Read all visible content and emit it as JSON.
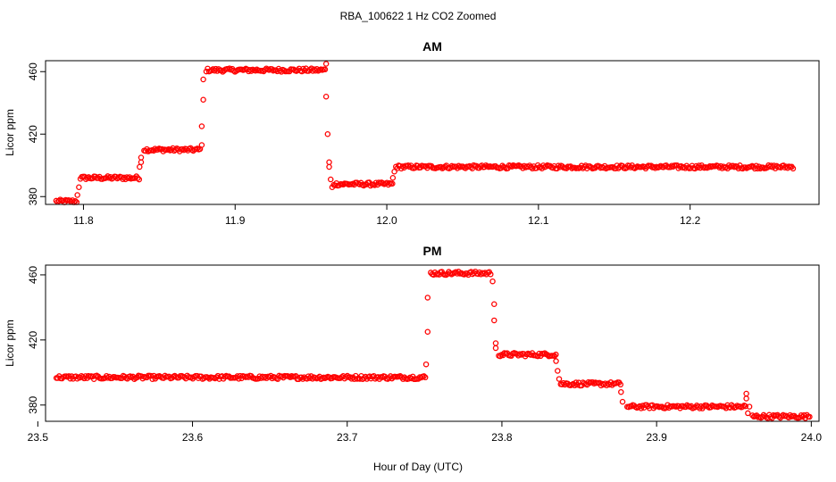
{
  "title": "RBA_100622  1 Hz CO2 Zoomed",
  "xlabel": "Hour of Day (UTC)",
  "colors": {
    "points": "#ff0000",
    "axes": "#000000",
    "background": "#ffffff"
  },
  "chart_data": [
    {
      "type": "scatter",
      "title": "AM",
      "ylabel": "Licor ppm",
      "xlim": [
        11.775,
        12.285
      ],
      "ylim": [
        375,
        467
      ],
      "xticks": [
        "11.8",
        "11.9",
        "12.0",
        "12.1",
        "12.2"
      ],
      "xtick_values": [
        11.8,
        11.9,
        12.0,
        12.1,
        12.2
      ],
      "yticks": [
        "380",
        "420",
        "460"
      ],
      "ytick_values": [
        380,
        420,
        460
      ],
      "x_step": 0.0018,
      "plateaus": [
        {
          "x0": 11.782,
          "x1": 11.795,
          "y": 377
        },
        {
          "x0": 11.798,
          "x1": 11.836,
          "y": 392
        },
        {
          "x0": 11.84,
          "x1": 11.877,
          "y": 410
        },
        {
          "x0": 11.881,
          "x1": 11.959,
          "y": 461
        },
        {
          "x0": 11.965,
          "x1": 12.003,
          "y": 388
        },
        {
          "x0": 12.006,
          "x1": 12.267,
          "y": 399
        }
      ],
      "transitions": [
        {
          "x": 11.796,
          "y": 381
        },
        {
          "x": 11.797,
          "y": 386
        },
        {
          "x": 11.837,
          "y": 399
        },
        {
          "x": 11.838,
          "y": 402
        },
        {
          "x": 11.838,
          "y": 405
        },
        {
          "x": 11.878,
          "y": 413
        },
        {
          "x": 11.878,
          "y": 425
        },
        {
          "x": 11.879,
          "y": 442
        },
        {
          "x": 11.879,
          "y": 455
        },
        {
          "x": 11.96,
          "y": 465
        },
        {
          "x": 11.96,
          "y": 444
        },
        {
          "x": 11.961,
          "y": 420
        },
        {
          "x": 11.962,
          "y": 402
        },
        {
          "x": 11.962,
          "y": 399
        },
        {
          "x": 11.963,
          "y": 391
        },
        {
          "x": 11.964,
          "y": 386
        },
        {
          "x": 12.004,
          "y": 392
        },
        {
          "x": 12.005,
          "y": 396
        }
      ]
    },
    {
      "type": "scatter",
      "title": "PM",
      "ylabel": "Licor ppm",
      "xlim": [
        23.505,
        24.005
      ],
      "ylim": [
        370,
        466
      ],
      "xticks": [
        "23.5",
        "23.6",
        "23.7",
        "23.8",
        "23.9",
        "24.0"
      ],
      "xtick_values": [
        23.5,
        23.6,
        23.7,
        23.8,
        23.9,
        24.0
      ],
      "yticks": [
        "380",
        "420",
        "460"
      ],
      "ytick_values": [
        380,
        420,
        460
      ],
      "x_step": 0.0018,
      "plateaus": [
        {
          "x0": 23.512,
          "x1": 23.75,
          "y": 397
        },
        {
          "x0": 23.754,
          "x1": 23.793,
          "y": 461
        },
        {
          "x0": 23.798,
          "x1": 23.834,
          "y": 411
        },
        {
          "x0": 23.838,
          "x1": 23.876,
          "y": 393
        },
        {
          "x0": 23.881,
          "x1": 23.957,
          "y": 379
        },
        {
          "x0": 23.962,
          "x1": 23.998,
          "y": 373
        }
      ],
      "transitions": [
        {
          "x": 23.751,
          "y": 405
        },
        {
          "x": 23.752,
          "y": 425
        },
        {
          "x": 23.752,
          "y": 446
        },
        {
          "x": 23.794,
          "y": 456
        },
        {
          "x": 23.795,
          "y": 442
        },
        {
          "x": 23.795,
          "y": 432
        },
        {
          "x": 23.796,
          "y": 418
        },
        {
          "x": 23.796,
          "y": 415
        },
        {
          "x": 23.835,
          "y": 407
        },
        {
          "x": 23.836,
          "y": 401
        },
        {
          "x": 23.837,
          "y": 396
        },
        {
          "x": 23.877,
          "y": 388
        },
        {
          "x": 23.878,
          "y": 382
        },
        {
          "x": 23.958,
          "y": 387
        },
        {
          "x": 23.958,
          "y": 384
        },
        {
          "x": 23.959,
          "y": 375
        },
        {
          "x": 23.96,
          "y": 379
        }
      ]
    }
  ]
}
